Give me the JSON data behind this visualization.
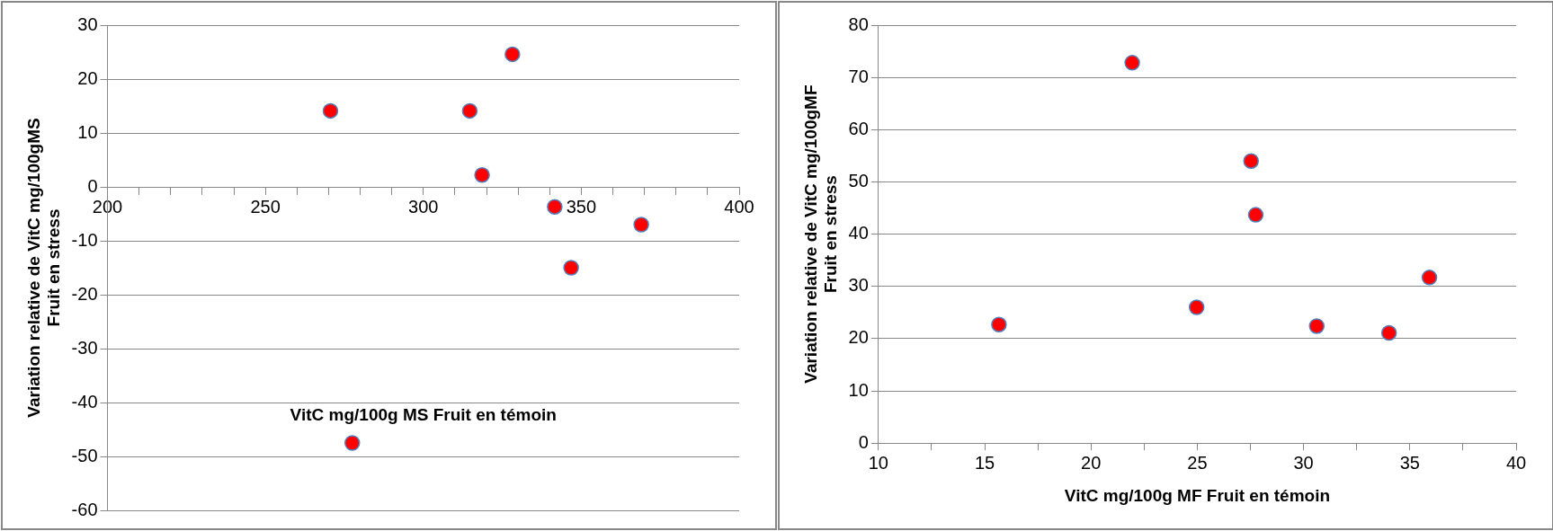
{
  "chart_data": [
    {
      "type": "scatter",
      "xlabel": "VitC mg/100g MS Fruit en témoin",
      "ylabel": "Variation relative de VitC mg/100gMS\nFruit en stress",
      "series": [
        {
          "color": "#ff0000",
          "x": [
            270.6,
            314.7,
            318.6,
            328.2,
            341.6,
            346.8,
            369.0,
            277.5
          ],
          "values": [
            14.1,
            14.1,
            2.2,
            24.6,
            -3.7,
            -15.0,
            -7.0,
            -47.5
          ]
        }
      ],
      "xlim": [
        200,
        400
      ],
      "xticks": [
        200,
        {
          "value": 210,
          "label": null
        },
        {
          "value": 220,
          "label": null
        },
        {
          "value": 230,
          "label": null
        },
        {
          "value": 240,
          "label": null
        },
        250,
        {
          "value": 260,
          "label": null
        },
        {
          "value": 270,
          "label": null
        },
        {
          "value": 280,
          "label": null
        },
        {
          "value": 290,
          "label": null
        },
        300,
        {
          "value": 310,
          "label": null
        },
        {
          "value": 320,
          "label": null
        },
        {
          "value": 330,
          "label": null
        },
        {
          "value": 340,
          "label": null
        },
        350,
        {
          "value": 360,
          "label": null
        },
        {
          "value": 370,
          "label": null
        },
        {
          "value": 380,
          "label": null
        },
        {
          "value": 390,
          "label": null
        },
        400
      ],
      "ylim": [
        -60,
        30
      ],
      "yticks": [
        -60,
        -50,
        -40,
        -30,
        -20,
        -10,
        0,
        10,
        20,
        30
      ],
      "grid": "y",
      "marker": "circle"
    },
    {
      "type": "scatter",
      "xlabel": "VitC mg/100g MF Fruit en témoin",
      "ylabel": "Variation relative de VitC mg/100gMF\nFruit en stress",
      "series": [
        {
          "color": "#ff0000",
          "x": [
            15.67,
            21.94,
            27.53,
            27.75,
            24.97,
            30.62,
            34.02,
            35.92
          ],
          "values": [
            22.7,
            72.8,
            54.0,
            43.7,
            26.0,
            22.4,
            21.1,
            31.7
          ]
        }
      ],
      "xlim": [
        10,
        40
      ],
      "xticks": [
        10,
        {
          "value": 12.5,
          "label": null
        },
        15,
        {
          "value": 17.5,
          "label": null
        },
        20,
        {
          "value": 22.5,
          "label": null
        },
        25,
        {
          "value": 27.5,
          "label": null
        },
        30,
        {
          "value": 32.5,
          "label": null
        },
        35,
        {
          "value": 37.5,
          "label": null
        },
        40
      ],
      "ylim": [
        0,
        80
      ],
      "yticks": [
        0,
        10,
        20,
        30,
        40,
        50,
        60,
        70,
        80
      ],
      "grid": "y",
      "marker": "circle"
    }
  ]
}
